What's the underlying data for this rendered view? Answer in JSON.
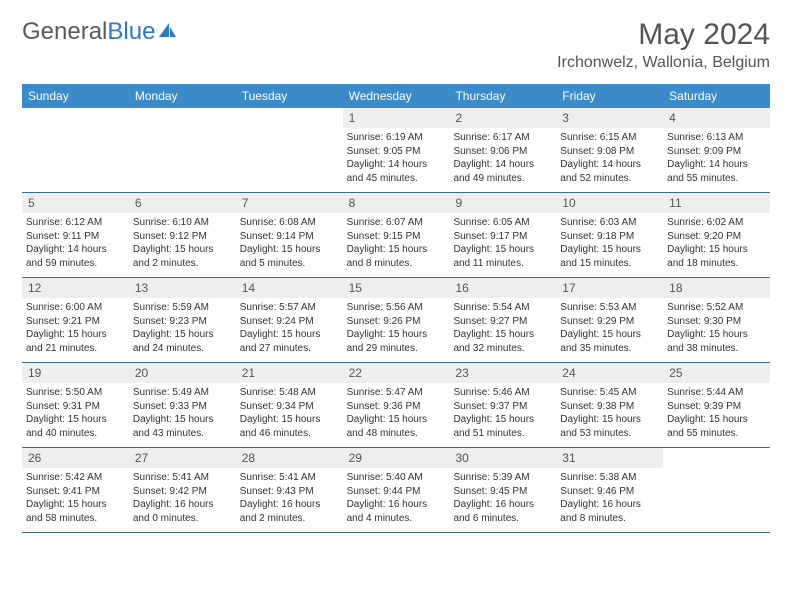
{
  "logo": {
    "text_gray": "General",
    "text_blue": "Blue"
  },
  "title": "May 2024",
  "location": "Irchonwelz, Wallonia, Belgium",
  "colors": {
    "header_bg": "#3b8bc9",
    "header_text": "#ffffff",
    "daynum_bg": "#eeeeee",
    "row_border": "#3b6a95",
    "body_text": "#333333",
    "title_text": "#555555",
    "logo_gray": "#5a5a5a",
    "logo_blue": "#2d7bbf",
    "background": "#ffffff"
  },
  "fonts": {
    "title_pt": 30,
    "location_pt": 16,
    "logo_pt": 24,
    "weekday_pt": 12,
    "daynum_pt": 12,
    "body_pt": 10
  },
  "weekdays": [
    "Sunday",
    "Monday",
    "Tuesday",
    "Wednesday",
    "Thursday",
    "Friday",
    "Saturday"
  ],
  "weeks": [
    [
      {
        "n": "",
        "lines": []
      },
      {
        "n": "",
        "lines": []
      },
      {
        "n": "",
        "lines": []
      },
      {
        "n": "1",
        "lines": [
          "Sunrise: 6:19 AM",
          "Sunset: 9:05 PM",
          "Daylight: 14 hours",
          "and 45 minutes."
        ]
      },
      {
        "n": "2",
        "lines": [
          "Sunrise: 6:17 AM",
          "Sunset: 9:06 PM",
          "Daylight: 14 hours",
          "and 49 minutes."
        ]
      },
      {
        "n": "3",
        "lines": [
          "Sunrise: 6:15 AM",
          "Sunset: 9:08 PM",
          "Daylight: 14 hours",
          "and 52 minutes."
        ]
      },
      {
        "n": "4",
        "lines": [
          "Sunrise: 6:13 AM",
          "Sunset: 9:09 PM",
          "Daylight: 14 hours",
          "and 55 minutes."
        ]
      }
    ],
    [
      {
        "n": "5",
        "lines": [
          "Sunrise: 6:12 AM",
          "Sunset: 9:11 PM",
          "Daylight: 14 hours",
          "and 59 minutes."
        ]
      },
      {
        "n": "6",
        "lines": [
          "Sunrise: 6:10 AM",
          "Sunset: 9:12 PM",
          "Daylight: 15 hours",
          "and 2 minutes."
        ]
      },
      {
        "n": "7",
        "lines": [
          "Sunrise: 6:08 AM",
          "Sunset: 9:14 PM",
          "Daylight: 15 hours",
          "and 5 minutes."
        ]
      },
      {
        "n": "8",
        "lines": [
          "Sunrise: 6:07 AM",
          "Sunset: 9:15 PM",
          "Daylight: 15 hours",
          "and 8 minutes."
        ]
      },
      {
        "n": "9",
        "lines": [
          "Sunrise: 6:05 AM",
          "Sunset: 9:17 PM",
          "Daylight: 15 hours",
          "and 11 minutes."
        ]
      },
      {
        "n": "10",
        "lines": [
          "Sunrise: 6:03 AM",
          "Sunset: 9:18 PM",
          "Daylight: 15 hours",
          "and 15 minutes."
        ]
      },
      {
        "n": "11",
        "lines": [
          "Sunrise: 6:02 AM",
          "Sunset: 9:20 PM",
          "Daylight: 15 hours",
          "and 18 minutes."
        ]
      }
    ],
    [
      {
        "n": "12",
        "lines": [
          "Sunrise: 6:00 AM",
          "Sunset: 9:21 PM",
          "Daylight: 15 hours",
          "and 21 minutes."
        ]
      },
      {
        "n": "13",
        "lines": [
          "Sunrise: 5:59 AM",
          "Sunset: 9:23 PM",
          "Daylight: 15 hours",
          "and 24 minutes."
        ]
      },
      {
        "n": "14",
        "lines": [
          "Sunrise: 5:57 AM",
          "Sunset: 9:24 PM",
          "Daylight: 15 hours",
          "and 27 minutes."
        ]
      },
      {
        "n": "15",
        "lines": [
          "Sunrise: 5:56 AM",
          "Sunset: 9:26 PM",
          "Daylight: 15 hours",
          "and 29 minutes."
        ]
      },
      {
        "n": "16",
        "lines": [
          "Sunrise: 5:54 AM",
          "Sunset: 9:27 PM",
          "Daylight: 15 hours",
          "and 32 minutes."
        ]
      },
      {
        "n": "17",
        "lines": [
          "Sunrise: 5:53 AM",
          "Sunset: 9:29 PM",
          "Daylight: 15 hours",
          "and 35 minutes."
        ]
      },
      {
        "n": "18",
        "lines": [
          "Sunrise: 5:52 AM",
          "Sunset: 9:30 PM",
          "Daylight: 15 hours",
          "and 38 minutes."
        ]
      }
    ],
    [
      {
        "n": "19",
        "lines": [
          "Sunrise: 5:50 AM",
          "Sunset: 9:31 PM",
          "Daylight: 15 hours",
          "and 40 minutes."
        ]
      },
      {
        "n": "20",
        "lines": [
          "Sunrise: 5:49 AM",
          "Sunset: 9:33 PM",
          "Daylight: 15 hours",
          "and 43 minutes."
        ]
      },
      {
        "n": "21",
        "lines": [
          "Sunrise: 5:48 AM",
          "Sunset: 9:34 PM",
          "Daylight: 15 hours",
          "and 46 minutes."
        ]
      },
      {
        "n": "22",
        "lines": [
          "Sunrise: 5:47 AM",
          "Sunset: 9:36 PM",
          "Daylight: 15 hours",
          "and 48 minutes."
        ]
      },
      {
        "n": "23",
        "lines": [
          "Sunrise: 5:46 AM",
          "Sunset: 9:37 PM",
          "Daylight: 15 hours",
          "and 51 minutes."
        ]
      },
      {
        "n": "24",
        "lines": [
          "Sunrise: 5:45 AM",
          "Sunset: 9:38 PM",
          "Daylight: 15 hours",
          "and 53 minutes."
        ]
      },
      {
        "n": "25",
        "lines": [
          "Sunrise: 5:44 AM",
          "Sunset: 9:39 PM",
          "Daylight: 15 hours",
          "and 55 minutes."
        ]
      }
    ],
    [
      {
        "n": "26",
        "lines": [
          "Sunrise: 5:42 AM",
          "Sunset: 9:41 PM",
          "Daylight: 15 hours",
          "and 58 minutes."
        ]
      },
      {
        "n": "27",
        "lines": [
          "Sunrise: 5:41 AM",
          "Sunset: 9:42 PM",
          "Daylight: 16 hours",
          "and 0 minutes."
        ]
      },
      {
        "n": "28",
        "lines": [
          "Sunrise: 5:41 AM",
          "Sunset: 9:43 PM",
          "Daylight: 16 hours",
          "and 2 minutes."
        ]
      },
      {
        "n": "29",
        "lines": [
          "Sunrise: 5:40 AM",
          "Sunset: 9:44 PM",
          "Daylight: 16 hours",
          "and 4 minutes."
        ]
      },
      {
        "n": "30",
        "lines": [
          "Sunrise: 5:39 AM",
          "Sunset: 9:45 PM",
          "Daylight: 16 hours",
          "and 6 minutes."
        ]
      },
      {
        "n": "31",
        "lines": [
          "Sunrise: 5:38 AM",
          "Sunset: 9:46 PM",
          "Daylight: 16 hours",
          "and 8 minutes."
        ]
      },
      {
        "n": "",
        "lines": []
      }
    ]
  ]
}
